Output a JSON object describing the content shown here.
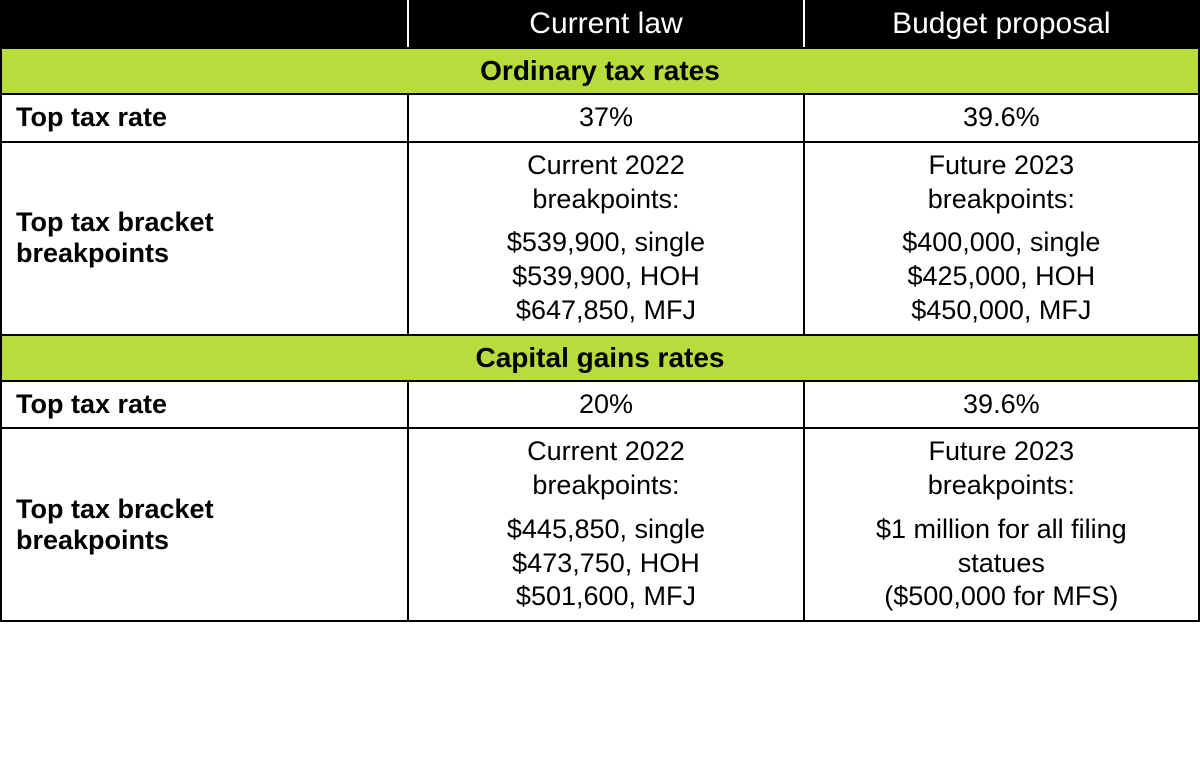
{
  "colors": {
    "header_bg": "#000000",
    "header_text": "#ffffff",
    "section_bg": "#b7dc3b",
    "border": "#000000",
    "text": "#000000",
    "page_bg": "#ffffff"
  },
  "fonts": {
    "header_size_pt": 22,
    "section_size_pt": 21,
    "label_size_pt": 20,
    "cell_size_pt": 20,
    "label_weight": "700",
    "cell_weight": "400"
  },
  "columns": {
    "blank": "",
    "current": "Current law",
    "proposal": "Budget proposal",
    "widths_pct": [
      34,
      33,
      33
    ]
  },
  "sections": [
    {
      "title": "Ordinary tax rates",
      "rows": [
        {
          "label": "Top tax rate",
          "current": {
            "lines": [
              "37%"
            ]
          },
          "proposal": {
            "lines": [
              "39.6%"
            ]
          },
          "simple": true
        },
        {
          "label": "Top tax bracket breakpoints",
          "current": {
            "heading": [
              "Current 2022",
              "breakpoints:"
            ],
            "lines": [
              "$539,900, single",
              "$539,900, HOH",
              "$647,850, MFJ"
            ]
          },
          "proposal": {
            "heading": [
              "Future 2023",
              "breakpoints:"
            ],
            "lines": [
              "$400,000, single",
              "$425,000, HOH",
              "$450,000, MFJ"
            ]
          }
        }
      ]
    },
    {
      "title": "Capital gains rates",
      "rows": [
        {
          "label": "Top tax rate",
          "current": {
            "lines": [
              "20%"
            ]
          },
          "proposal": {
            "lines": [
              "39.6%"
            ]
          },
          "simple": true
        },
        {
          "label": "Top tax bracket breakpoints",
          "current": {
            "heading": [
              "Current 2022",
              "breakpoints:"
            ],
            "lines": [
              "$445,850, single",
              "$473,750, HOH",
              "$501,600, MFJ"
            ]
          },
          "proposal": {
            "heading": [
              "Future 2023",
              "breakpoints:"
            ],
            "lines": [
              "$1 million for all filing",
              "statues",
              "($500,000 for MFS)"
            ]
          }
        }
      ]
    }
  ]
}
